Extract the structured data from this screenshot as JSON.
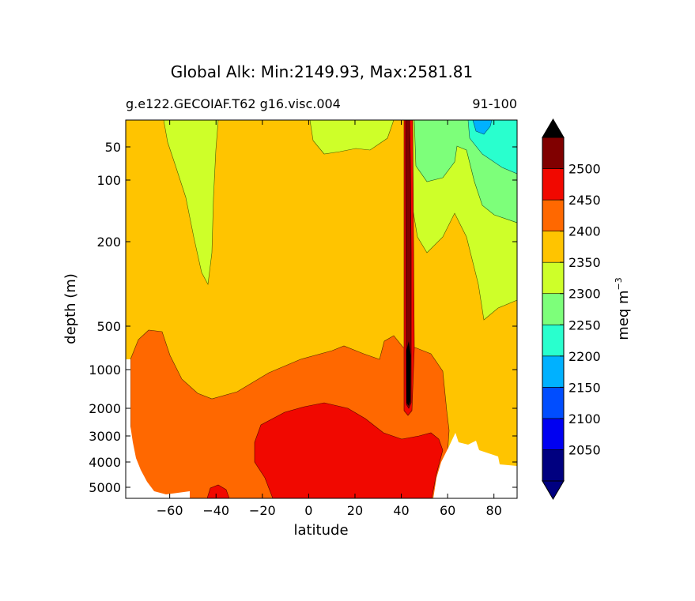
{
  "chart_data": {
    "type": "heatmap",
    "title": "Global Alk: Min:2149.93, Max:2581.81",
    "subtitle_left": "g.e122.GECOIAF.T62 g16.visc.004",
    "subtitle_right": "91-100",
    "xlabel": "latitude",
    "ylabel": "depth (m)",
    "xlim": [
      -79,
      90
    ],
    "ylim": [
      5500,
      5
    ],
    "y_scale": "nonlinear",
    "x_ticks": [
      -60,
      -40,
      -20,
      0,
      20,
      40,
      60,
      80
    ],
    "x_tick_labels": [
      "−60",
      "−40",
      "−20",
      "0",
      "20",
      "40",
      "60",
      "80"
    ],
    "y_ticks": [
      50,
      100,
      200,
      500,
      1000,
      2000,
      3000,
      4000,
      5000
    ],
    "y_tick_labels": [
      "50",
      "100",
      "200",
      "500",
      "1000",
      "2000",
      "3000",
      "4000",
      "5000"
    ],
    "colorbar": {
      "label": "meq m",
      "label_superscript": "−3",
      "extend": "both",
      "ticks": [
        2050,
        2100,
        2150,
        2200,
        2250,
        2300,
        2350,
        2400,
        2450,
        2500
      ],
      "levels": [
        2000,
        2050,
        2100,
        2150,
        2200,
        2250,
        2300,
        2350,
        2400,
        2450,
        2500,
        2550
      ],
      "colors": [
        "#000080",
        "#0000f1",
        "#004dff",
        "#00b1ff",
        "#29ffce",
        "#7dff7a",
        "#ceff29",
        "#ffc400",
        "#ff6800",
        "#f10800",
        "#800000"
      ],
      "under_color": "#000080",
      "over_color": "#000000"
    },
    "regions": [
      {
        "name": "surface-low-2300-south",
        "value_band": [
          2300,
          2350
        ],
        "lat_range": [
          -55,
          -34
        ],
        "depth_range": [
          5,
          350
        ]
      },
      {
        "name": "surface-low-2300-north",
        "value_band": [
          2300,
          2350
        ],
        "lat_range": [
          10,
          33
        ],
        "depth_range": [
          5,
          60
        ]
      },
      {
        "name": "deep-2400-band",
        "value_band": [
          2400,
          2450
        ],
        "lat_range": [
          -77,
          57
        ],
        "depth_range": [
          600,
          5500
        ]
      },
      {
        "name": "deep-2450-core",
        "value_band": [
          2450,
          2500
        ],
        "lat_range": [
          -20,
          52
        ],
        "depth_range": [
          1800,
          5500
        ]
      },
      {
        "name": "mediterranean-plume",
        "value_band": [
          2500,
          2582
        ],
        "lat_range": [
          40,
          45
        ],
        "depth_range": [
          5,
          2000
        ]
      },
      {
        "name": "arctic-low",
        "value_band": [
          2150,
          2250
        ],
        "lat_range": [
          60,
          90
        ],
        "depth_range": [
          5,
          250
        ]
      },
      {
        "name": "land-mask-north",
        "value_band": null,
        "lat_range": [
          52,
          90
        ],
        "depth_range": [
          3000,
          5500
        ]
      }
    ]
  }
}
